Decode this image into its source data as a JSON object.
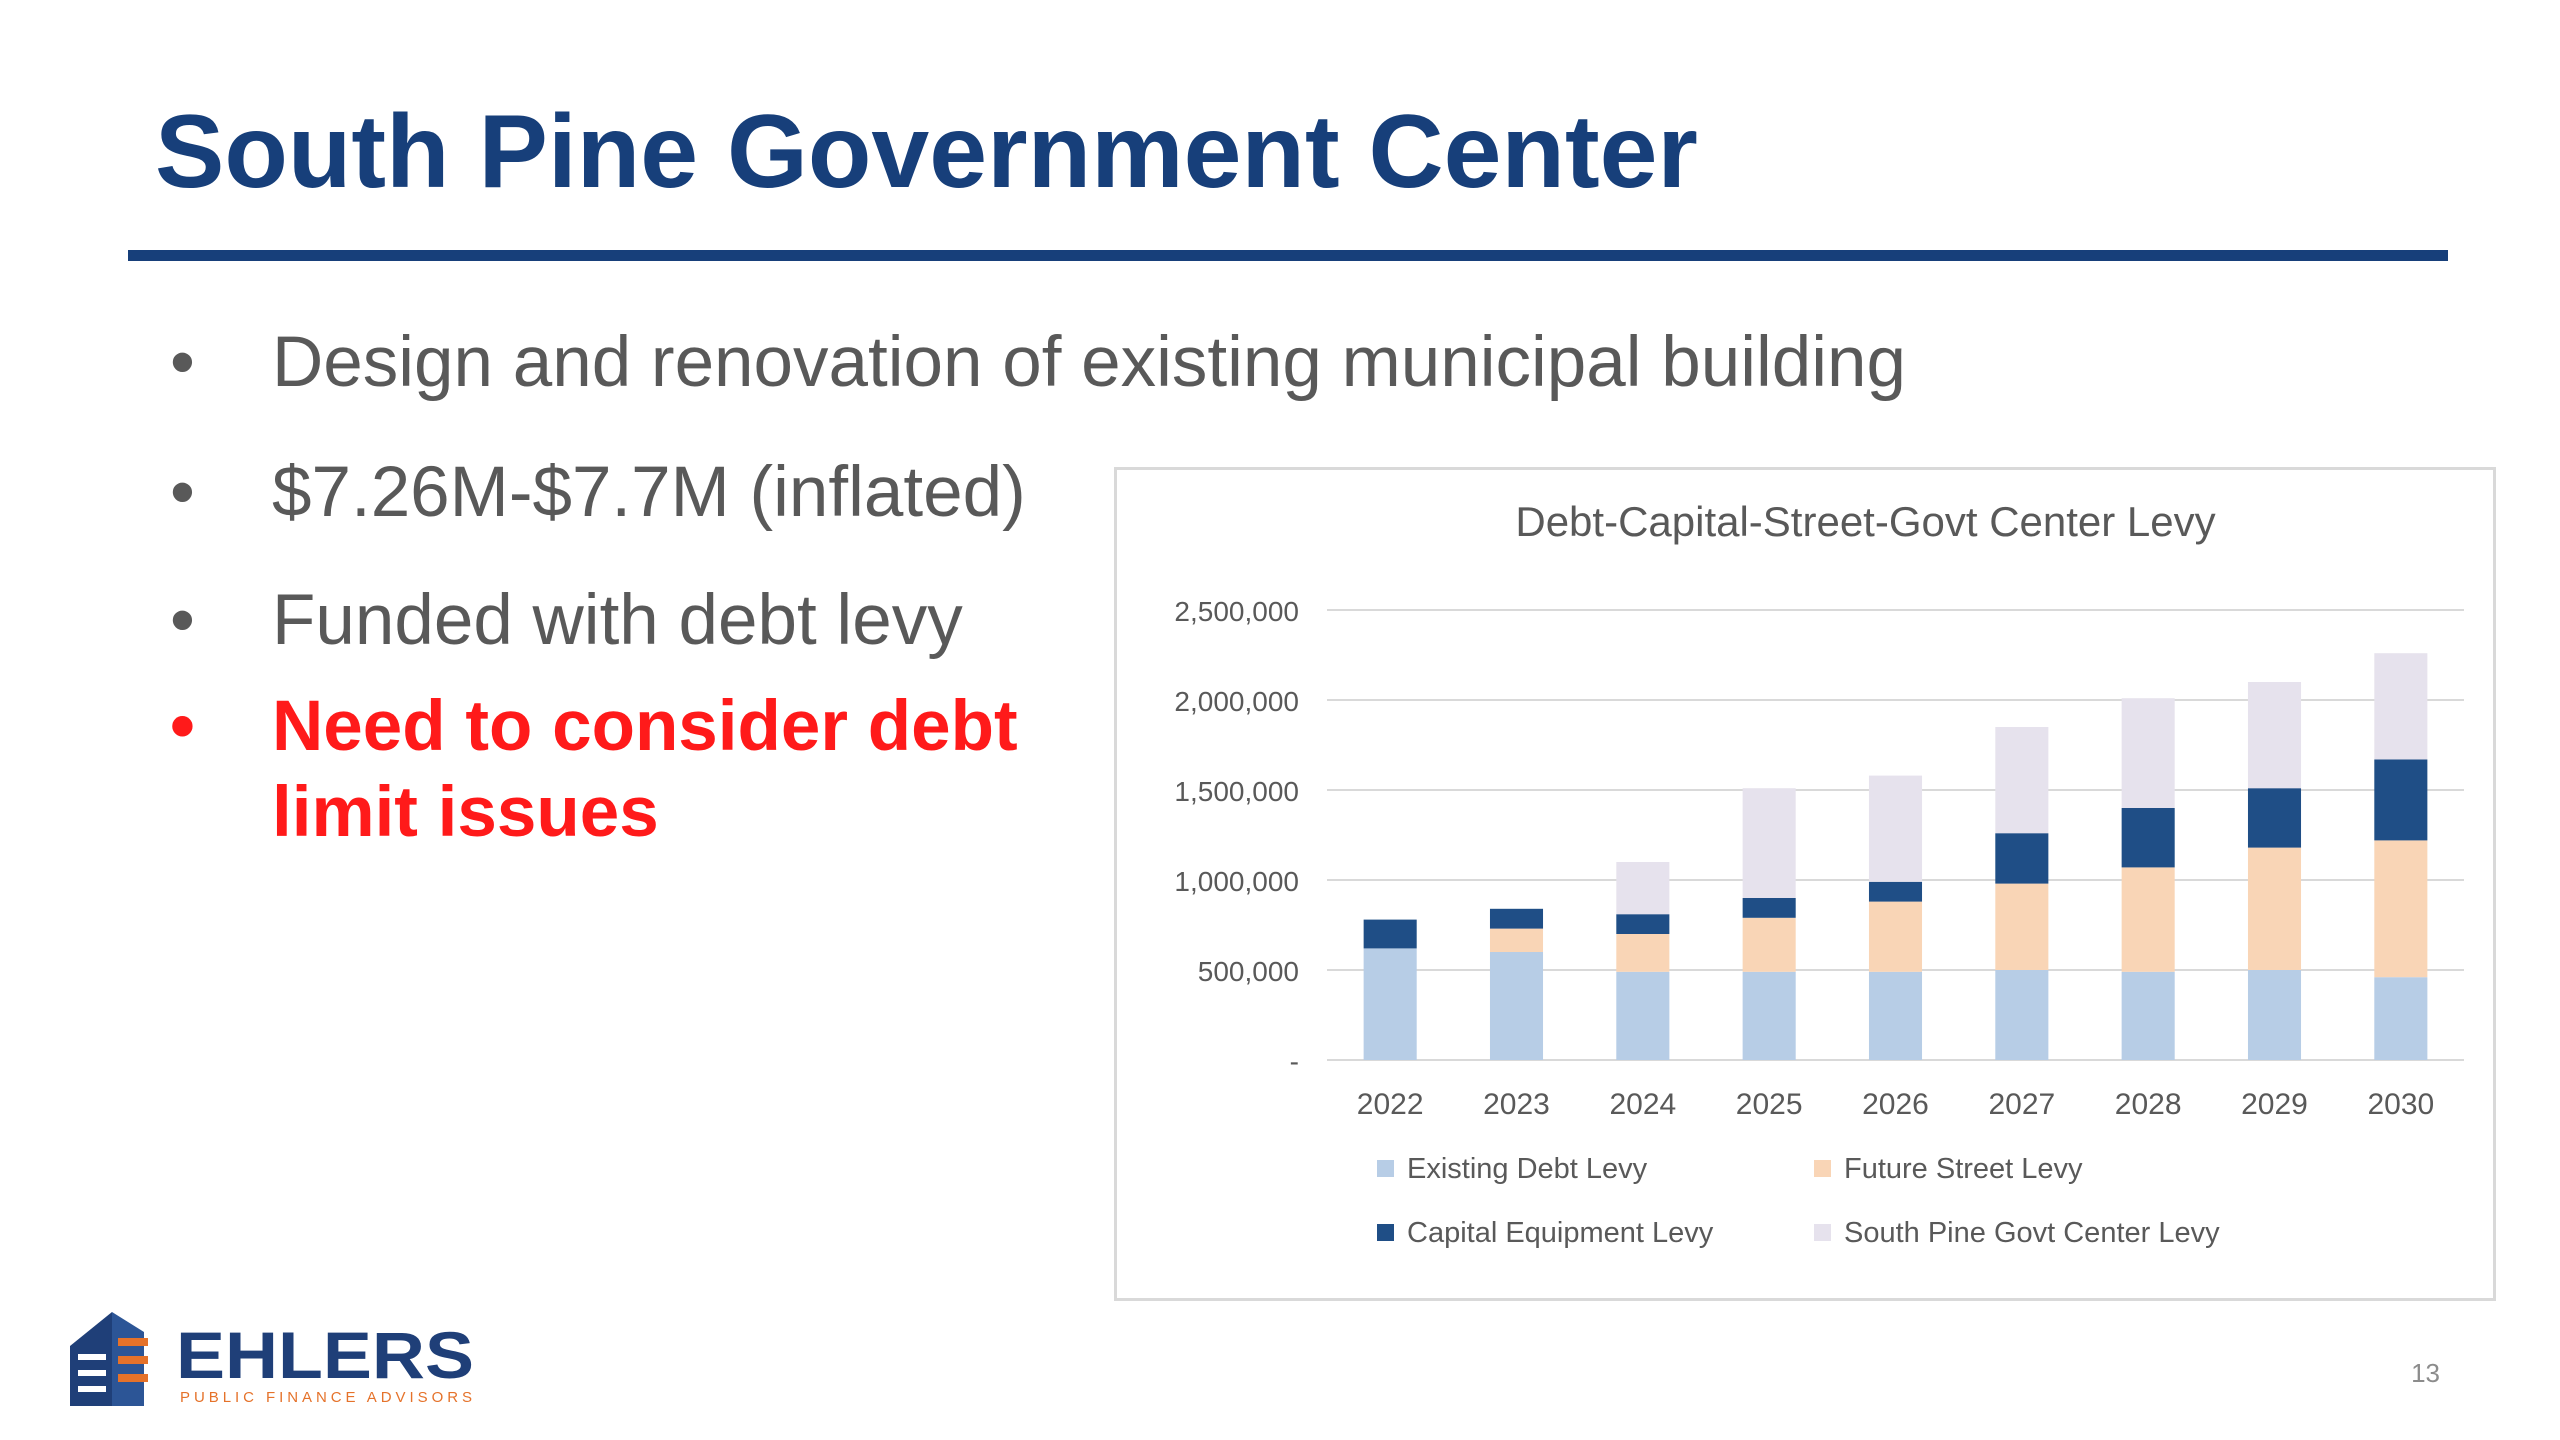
{
  "slide": {
    "title": "South Pine Government Center",
    "page_number": "13"
  },
  "bullets": [
    {
      "marker": "•",
      "text": "Design and renovation of existing municipal building"
    },
    {
      "marker": "•",
      "text": "$7.26M-$7.7M (inflated)"
    },
    {
      "marker": "•",
      "text": "Funded with debt levy"
    },
    {
      "marker": "•",
      "text": "Need to consider debt limit issues"
    }
  ],
  "logo": {
    "name": "EHLERS",
    "tagline": "PUBLIC FINANCE ADVISORS",
    "colors": {
      "navy": "#1f3f78",
      "orange": "#e5722a"
    }
  },
  "colors": {
    "title": "#173f7a",
    "bullet_text": "#595959",
    "alert_text": "#ff1a1a"
  },
  "chart_data": {
    "type": "bar",
    "stacked": true,
    "title": "Debt-Capital-Street-Govt Center Levy",
    "categories": [
      "2022",
      "2023",
      "2024",
      "2025",
      "2026",
      "2027",
      "2028",
      "2029",
      "2030"
    ],
    "ylim": [
      0,
      2500000
    ],
    "yticks": [
      0,
      500000,
      1000000,
      1500000,
      2000000,
      2500000
    ],
    "ytick_labels": [
      "-",
      "500,000",
      "1,000,000",
      "1,500,000",
      "2,000,000",
      "2,500,000"
    ],
    "grid": true,
    "legend_position": "bottom",
    "series": [
      {
        "name": "Existing Debt Levy",
        "color": "#b7cde6",
        "values": [
          620000,
          600000,
          490000,
          490000,
          490000,
          500000,
          490000,
          500000,
          460000
        ]
      },
      {
        "name": "Future Street Levy",
        "color": "#f9d5b6",
        "values": [
          0,
          130000,
          210000,
          300000,
          390000,
          480000,
          580000,
          680000,
          760000
        ]
      },
      {
        "name": "Capital Equipment Levy",
        "color": "#1f4e86",
        "values": [
          160000,
          110000,
          110000,
          110000,
          110000,
          280000,
          330000,
          330000,
          450000
        ]
      },
      {
        "name": "South Pine Govt Center Levy",
        "color": "#e6e2ed",
        "values": [
          0,
          0,
          290000,
          610000,
          590000,
          590000,
          610000,
          590000,
          590000
        ]
      }
    ]
  }
}
